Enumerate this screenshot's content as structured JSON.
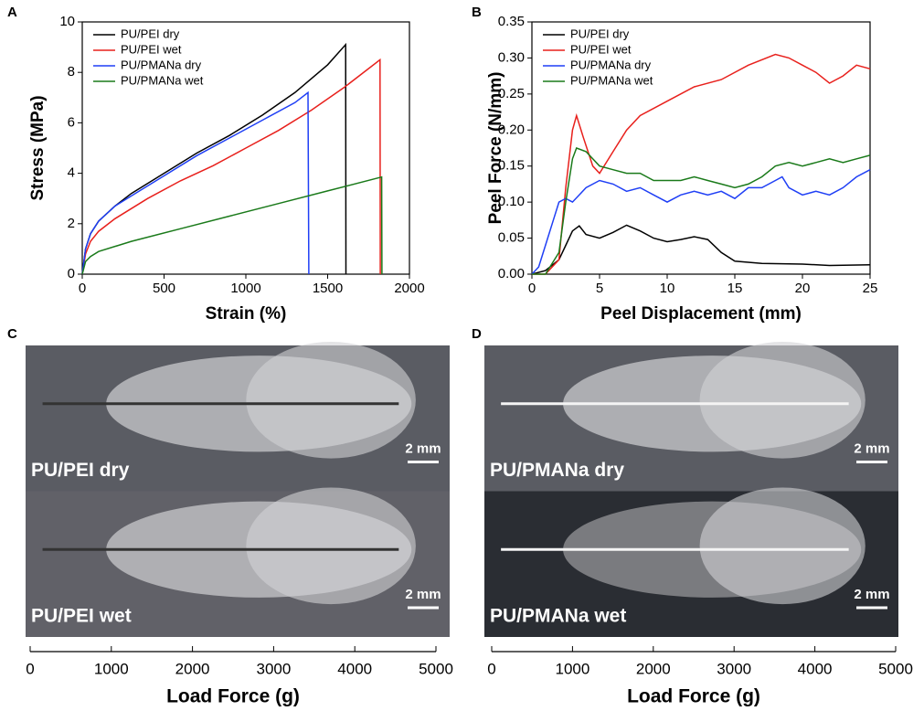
{
  "chart_data": [
    {
      "type": "line",
      "panel": "A",
      "xlabel": "Strain (%)",
      "ylabel": "Stress (MPa)",
      "xlim": [
        0,
        2000
      ],
      "xticks": [
        0,
        500,
        1000,
        1500,
        2000
      ],
      "ylim": [
        0,
        10
      ],
      "yticks": [
        0,
        2,
        4,
        6,
        8,
        10
      ],
      "legend": "upper left",
      "series": [
        {
          "name": "PU/PEI dry",
          "color": "#000000",
          "x": [
            0,
            20,
            50,
            100,
            200,
            300,
            500,
            700,
            900,
            1100,
            1300,
            1500,
            1610,
            1612
          ],
          "values": [
            0,
            1.0,
            1.6,
            2.1,
            2.7,
            3.2,
            4.0,
            4.8,
            5.5,
            6.3,
            7.2,
            8.3,
            9.1,
            0
          ]
        },
        {
          "name": "PU/PEI wet",
          "color": "#e8201c",
          "x": [
            0,
            20,
            50,
            100,
            200,
            400,
            600,
            800,
            1000,
            1200,
            1400,
            1600,
            1820,
            1822
          ],
          "values": [
            0,
            0.8,
            1.3,
            1.7,
            2.2,
            3.0,
            3.7,
            4.3,
            5.0,
            5.7,
            6.5,
            7.4,
            8.5,
            0
          ]
        },
        {
          "name": "PU/PMANa dry",
          "color": "#1f3ff5",
          "x": [
            0,
            20,
            50,
            100,
            200,
            300,
            500,
            700,
            900,
            1100,
            1300,
            1380,
            1385
          ],
          "values": [
            0,
            1.0,
            1.6,
            2.1,
            2.7,
            3.1,
            3.9,
            4.7,
            5.4,
            6.1,
            6.8,
            7.2,
            0
          ]
        },
        {
          "name": "PU/PMANa wet",
          "color": "#1a7a1a",
          "x": [
            0,
            20,
            50,
            100,
            300,
            600,
            900,
            1200,
            1500,
            1830,
            1832
          ],
          "values": [
            0,
            0.5,
            0.7,
            0.9,
            1.3,
            1.8,
            2.3,
            2.8,
            3.3,
            3.85,
            0
          ]
        }
      ]
    },
    {
      "type": "line",
      "panel": "B",
      "xlabel": "Peel Displacement (mm)",
      "ylabel": "Peel Force (N/mm)",
      "xlim": [
        0,
        25
      ],
      "xticks": [
        0,
        5,
        10,
        15,
        20,
        25
      ],
      "ylim": [
        0,
        0.35
      ],
      "yticks": [
        {
          "value": 0,
          "label": "0.00"
        },
        {
          "value": 0.05,
          "label": "0.05"
        },
        {
          "value": 0.1,
          "label": "0.10"
        },
        {
          "value": 0.15,
          "label": "0.15"
        },
        {
          "value": 0.2,
          "label": "0.20"
        },
        {
          "value": 0.25,
          "label": "0.25"
        },
        {
          "value": 0.3,
          "label": "0.30"
        },
        {
          "value": 0.35,
          "label": "0.35"
        }
      ],
      "legend": "upper left",
      "series": [
        {
          "name": "PU/PEI dry",
          "color": "#000000",
          "x": [
            0,
            1,
            2,
            2.5,
            3,
            3.5,
            4,
            5,
            6,
            7,
            8,
            9,
            10,
            11,
            12,
            13,
            14,
            15,
            17,
            20,
            22,
            25
          ],
          "values": [
            0,
            0.005,
            0.02,
            0.04,
            0.06,
            0.067,
            0.055,
            0.05,
            0.058,
            0.068,
            0.06,
            0.05,
            0.045,
            0.048,
            0.052,
            0.048,
            0.03,
            0.018,
            0.015,
            0.014,
            0.012,
            0.013
          ]
        },
        {
          "name": "PU/PEI wet",
          "color": "#e8201c",
          "x": [
            0,
            1,
            2,
            2.5,
            3,
            3.3,
            3.8,
            4.5,
            5,
            6,
            7,
            8,
            10,
            12,
            14,
            16,
            18,
            19,
            20,
            21,
            22,
            23,
            24,
            25
          ],
          "values": [
            0,
            0,
            0.02,
            0.12,
            0.2,
            0.22,
            0.19,
            0.15,
            0.14,
            0.17,
            0.2,
            0.22,
            0.24,
            0.26,
            0.27,
            0.29,
            0.305,
            0.3,
            0.29,
            0.28,
            0.265,
            0.275,
            0.29,
            0.285
          ]
        },
        {
          "name": "PU/PMANa dry",
          "color": "#1f3ff5",
          "x": [
            0,
            0.5,
            1,
            1.5,
            2,
            2.5,
            3,
            4,
            5,
            6,
            7,
            8,
            9,
            10,
            11,
            12,
            13,
            14,
            15,
            16,
            17,
            18,
            18.5,
            19,
            20,
            21,
            22,
            23,
            24,
            25
          ],
          "values": [
            0,
            0.01,
            0.04,
            0.07,
            0.1,
            0.105,
            0.1,
            0.12,
            0.13,
            0.125,
            0.115,
            0.12,
            0.11,
            0.1,
            0.11,
            0.115,
            0.11,
            0.115,
            0.105,
            0.12,
            0.12,
            0.13,
            0.135,
            0.12,
            0.11,
            0.115,
            0.11,
            0.12,
            0.135,
            0.145
          ]
        },
        {
          "name": "PU/PMANa wet",
          "color": "#1a7a1a",
          "x": [
            0,
            1,
            2,
            2.5,
            3,
            3.3,
            4,
            5,
            6,
            7,
            8,
            9,
            10,
            11,
            12,
            13,
            14,
            15,
            16,
            17,
            18,
            19,
            20,
            21,
            22,
            23,
            24,
            25
          ],
          "values": [
            0,
            0,
            0.03,
            0.1,
            0.16,
            0.175,
            0.17,
            0.15,
            0.145,
            0.14,
            0.14,
            0.13,
            0.13,
            0.13,
            0.135,
            0.13,
            0.125,
            0.12,
            0.125,
            0.135,
            0.15,
            0.155,
            0.15,
            0.155,
            0.16,
            0.155,
            0.16,
            0.165
          ]
        }
      ]
    },
    {
      "type": "photo",
      "panel": "C",
      "xlabel": "Load Force (g)",
      "xlim": [
        0,
        5000
      ],
      "xticks": [
        0,
        1000,
        2000,
        3000,
        4000,
        5000
      ],
      "images": [
        {
          "label": "PU/PEI dry",
          "scale": "2 mm"
        },
        {
          "label": "PU/PEI wet",
          "scale": "2 mm"
        }
      ]
    },
    {
      "type": "photo",
      "panel": "D",
      "xlabel": "Load Force (g)",
      "xlim": [
        0,
        5000
      ],
      "xticks": [
        0,
        1000,
        2000,
        3000,
        4000,
        5000
      ],
      "images": [
        {
          "label": "PU/PMANa dry",
          "scale": "2 mm"
        },
        {
          "label": "PU/PMANa wet",
          "scale": "2 mm"
        }
      ]
    }
  ]
}
